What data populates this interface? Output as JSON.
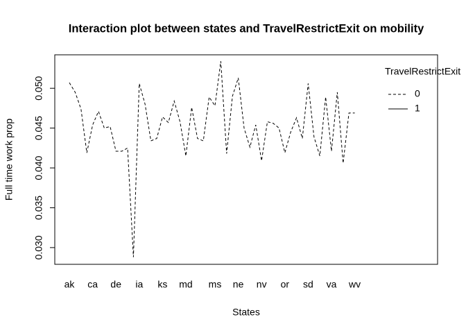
{
  "chart_data": {
    "type": "line",
    "title": "Interaction plot between states and TravelRestrictExit on mobility",
    "xlabel": "States",
    "ylabel": "Full time work prop",
    "legend_title": "TravelRestrictExit",
    "legend": "top-right",
    "categories": [
      "ak",
      null,
      null,
      null,
      "ca",
      null,
      null,
      null,
      "de",
      null,
      null,
      null,
      "ia",
      null,
      null,
      null,
      "ks",
      null,
      null,
      null,
      "md",
      null,
      null,
      null,
      null,
      "ms",
      null,
      null,
      null,
      "ne",
      null,
      null,
      null,
      "nv",
      null,
      null,
      null,
      "or",
      null,
      null,
      null,
      "sd",
      null,
      null,
      null,
      "va",
      null,
      null,
      null,
      "wv"
    ],
    "series": [
      {
        "name": "0",
        "color": "#000000",
        "dash": true,
        "values": [
          0.0507,
          0.0495,
          0.0474,
          0.0419,
          0.0454,
          0.0471,
          0.045,
          0.0452,
          0.0421,
          0.0421,
          0.0425,
          0.0288,
          0.0506,
          0.048,
          0.0434,
          0.0437,
          0.0464,
          0.0457,
          0.0484,
          0.0458,
          0.0415,
          0.0476,
          0.0437,
          0.0434,
          0.0489,
          0.0478,
          0.0534,
          0.0418,
          0.049,
          0.0513,
          0.045,
          0.0426,
          0.0454,
          0.0409,
          0.0458,
          0.0456,
          0.045,
          0.0419,
          0.0445,
          0.0463,
          0.0437,
          0.0506,
          0.0439,
          0.0415,
          0.0489,
          0.0421,
          0.0495,
          0.0406,
          0.0469,
          0.0469
        ]
      },
      {
        "name": "1",
        "color": "#000000",
        "dash": false,
        "values": [
          null,
          null,
          null,
          null,
          null,
          null,
          null,
          null,
          null,
          null,
          null,
          null,
          null,
          null,
          null,
          null,
          null,
          null,
          null,
          null,
          null,
          null,
          null,
          null,
          null,
          null,
          null,
          null,
          null,
          null,
          null,
          null,
          null,
          null,
          null,
          null,
          null,
          null,
          null,
          null,
          null,
          null,
          null,
          null,
          null,
          null,
          null,
          null,
          null,
          null
        ]
      }
    ],
    "ylim": [
      0.0279,
      0.0542
    ],
    "yticks": [
      {
        "value": 0.03,
        "label": "0.030"
      },
      0.035,
      {
        "value": 0.04,
        "label": "0.040"
      },
      0.045,
      {
        "value": 0.05,
        "label": "0.050"
      }
    ]
  }
}
